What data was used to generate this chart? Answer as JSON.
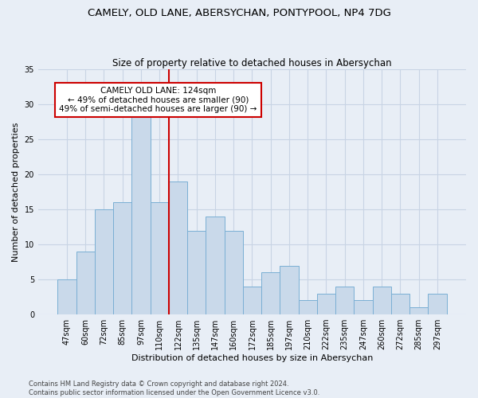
{
  "title_line1": "CAMELY, OLD LANE, ABERSYCHAN, PONTYPOOL, NP4 7DG",
  "title_line2": "Size of property relative to detached houses in Abersychan",
  "xlabel": "Distribution of detached houses by size in Abersychan",
  "ylabel": "Number of detached properties",
  "bar_labels": [
    "47sqm",
    "60sqm",
    "72sqm",
    "85sqm",
    "97sqm",
    "110sqm",
    "122sqm",
    "135sqm",
    "147sqm",
    "160sqm",
    "172sqm",
    "185sqm",
    "197sqm",
    "210sqm",
    "222sqm",
    "235sqm",
    "247sqm",
    "260sqm",
    "272sqm",
    "285sqm",
    "297sqm"
  ],
  "bar_values": [
    5,
    9,
    15,
    16,
    29,
    16,
    19,
    12,
    14,
    12,
    4,
    6,
    7,
    2,
    3,
    4,
    2,
    4,
    3,
    1,
    3
  ],
  "bar_color": "#c9d9ea",
  "bar_edgecolor": "#7aafd4",
  "vline_color": "#cc0000",
  "vline_index": 6,
  "annotation_text": "CAMELY OLD LANE: 124sqm\n← 49% of detached houses are smaller (90)\n49% of semi-detached houses are larger (90) →",
  "annotation_box_edgecolor": "#cc0000",
  "annotation_box_facecolor": "#ffffff",
  "ylim": [
    0,
    35
  ],
  "yticks": [
    0,
    5,
    10,
    15,
    20,
    25,
    30,
    35
  ],
  "grid_color": "#c8d4e4",
  "background_color": "#e8eef6",
  "footer_line1": "Contains HM Land Registry data © Crown copyright and database right 2024.",
  "footer_line2": "Contains public sector information licensed under the Open Government Licence v3.0.",
  "title_fontsize": 9.5,
  "subtitle_fontsize": 8.5,
  "axis_label_fontsize": 8,
  "tick_fontsize": 7,
  "annotation_fontsize": 7.5,
  "footer_fontsize": 6
}
